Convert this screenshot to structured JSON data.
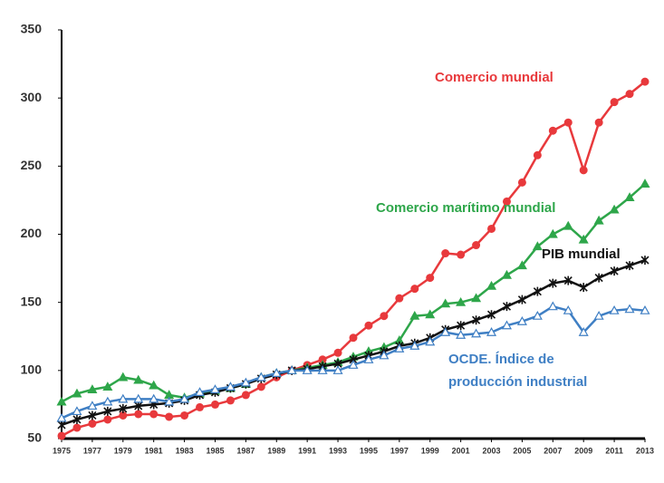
{
  "chart_data": {
    "type": "line",
    "x": [
      1975,
      1976,
      1977,
      1978,
      1979,
      1980,
      1981,
      1982,
      1983,
      1984,
      1985,
      1986,
      1987,
      1988,
      1989,
      1990,
      1991,
      1992,
      1993,
      1994,
      1995,
      1996,
      1997,
      1998,
      1999,
      2000,
      2001,
      2002,
      2003,
      2004,
      2005,
      2006,
      2007,
      2008,
      2009,
      2010,
      2011,
      2012,
      2013
    ],
    "xlim": [
      1975,
      2013
    ],
    "xticks": [
      1975,
      1977,
      1979,
      1981,
      1983,
      1985,
      1987,
      1989,
      1991,
      1993,
      1995,
      1997,
      1999,
      2001,
      2003,
      2005,
      2007,
      2009,
      2011,
      2013
    ],
    "ylim": [
      50,
      350
    ],
    "yticks": [
      50,
      100,
      150,
      200,
      250,
      300,
      350
    ],
    "series": [
      {
        "name": "Comercio mundial",
        "color": "#e8393c",
        "marker": "circle",
        "values": [
          52,
          58,
          61,
          64,
          67,
          68,
          68,
          66,
          67,
          73,
          75,
          78,
          82,
          88,
          95,
          100,
          104,
          108,
          113,
          124,
          133,
          140,
          153,
          160,
          168,
          186,
          185,
          192,
          204,
          224,
          238,
          258,
          276,
          282,
          247,
          282,
          297,
          303,
          312
        ]
      },
      {
        "name": "Comercio marítimo mundial",
        "color": "#2ea64a",
        "marker": "triangle",
        "values": [
          77,
          83,
          86,
          88,
          95,
          93,
          89,
          82,
          80,
          83,
          85,
          87,
          90,
          95,
          98,
          100,
          102,
          104,
          106,
          110,
          114,
          117,
          122,
          140,
          141,
          149,
          150,
          153,
          162,
          170,
          177,
          191,
          200,
          206,
          196,
          210,
          218,
          227,
          237
        ]
      },
      {
        "name": "PIB mundial",
        "color": "#111111",
        "marker": "star",
        "values": [
          60,
          64,
          67,
          70,
          72,
          74,
          75,
          76,
          78,
          82,
          84,
          87,
          90,
          94,
          97,
          100,
          101,
          103,
          105,
          108,
          111,
          114,
          118,
          120,
          124,
          130,
          133,
          137,
          141,
          147,
          152,
          158,
          164,
          166,
          161,
          168,
          173,
          177,
          181
        ]
      },
      {
        "name": "OCDE. Índice de producción industrial",
        "color": "#3f7fc4",
        "marker": "open-triangle",
        "values": [
          65,
          70,
          74,
          77,
          79,
          79,
          79,
          77,
          79,
          84,
          86,
          88,
          91,
          95,
          98,
          100,
          100,
          100,
          100,
          104,
          108,
          111,
          116,
          118,
          121,
          128,
          126,
          127,
          128,
          133,
          136,
          140,
          147,
          144,
          128,
          140,
          144,
          145,
          144
        ]
      }
    ]
  }
}
